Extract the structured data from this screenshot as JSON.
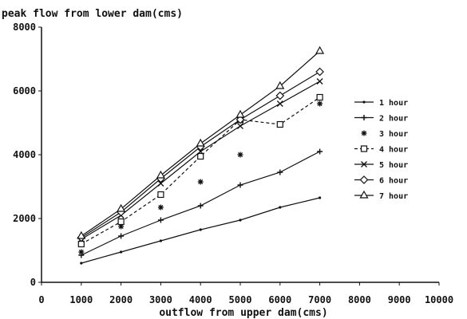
{
  "chart_data": {
    "type": "line",
    "title": "peak flow from lower dam(cms)",
    "xlabel": "outflow from upper dam(cms)",
    "ylabel": "",
    "xlim": [
      0,
      10000
    ],
    "ylim": [
      0,
      8000
    ],
    "x_ticks": [
      "0",
      "1000",
      "2000",
      "3000",
      "4000",
      "5000",
      "6000",
      "7000",
      "8000",
      "9000",
      "10000"
    ],
    "y_ticks": [
      "0",
      "2000",
      "4000",
      "6000",
      "8000"
    ],
    "grid": false,
    "legend_position": "right",
    "x": [
      1000,
      2000,
      3000,
      4000,
      5000,
      6000,
      7000
    ],
    "series": [
      {
        "name": "1 hour",
        "marker": "dot",
        "line": "solid",
        "values": [
          600,
          950,
          1300,
          1650,
          1950,
          2350,
          2650
        ]
      },
      {
        "name": "2 hour",
        "marker": "plus",
        "line": "solid",
        "values": [
          850,
          1450,
          1950,
          2400,
          3050,
          3450,
          4100
        ]
      },
      {
        "name": "3 hour",
        "marker": "star",
        "line": "none",
        "values": [
          950,
          1750,
          2350,
          3150,
          4000,
          4950,
          5600
        ]
      },
      {
        "name": "4 hour",
        "marker": "square",
        "line": "dashed",
        "values": [
          1200,
          1900,
          2750,
          3950,
          5100,
          4950,
          5800
        ]
      },
      {
        "name": "5 hour",
        "marker": "x",
        "line": "solid",
        "values": [
          1350,
          2100,
          3100,
          4100,
          4900,
          5600,
          6300
        ]
      },
      {
        "name": "6 hour",
        "marker": "diamond",
        "line": "solid",
        "values": [
          1400,
          2200,
          3250,
          4250,
          5100,
          5850,
          6600
        ]
      },
      {
        "name": "7 hour",
        "marker": "triangle",
        "line": "solid",
        "values": [
          1450,
          2300,
          3350,
          4350,
          5250,
          6150,
          7250
        ]
      }
    ]
  }
}
